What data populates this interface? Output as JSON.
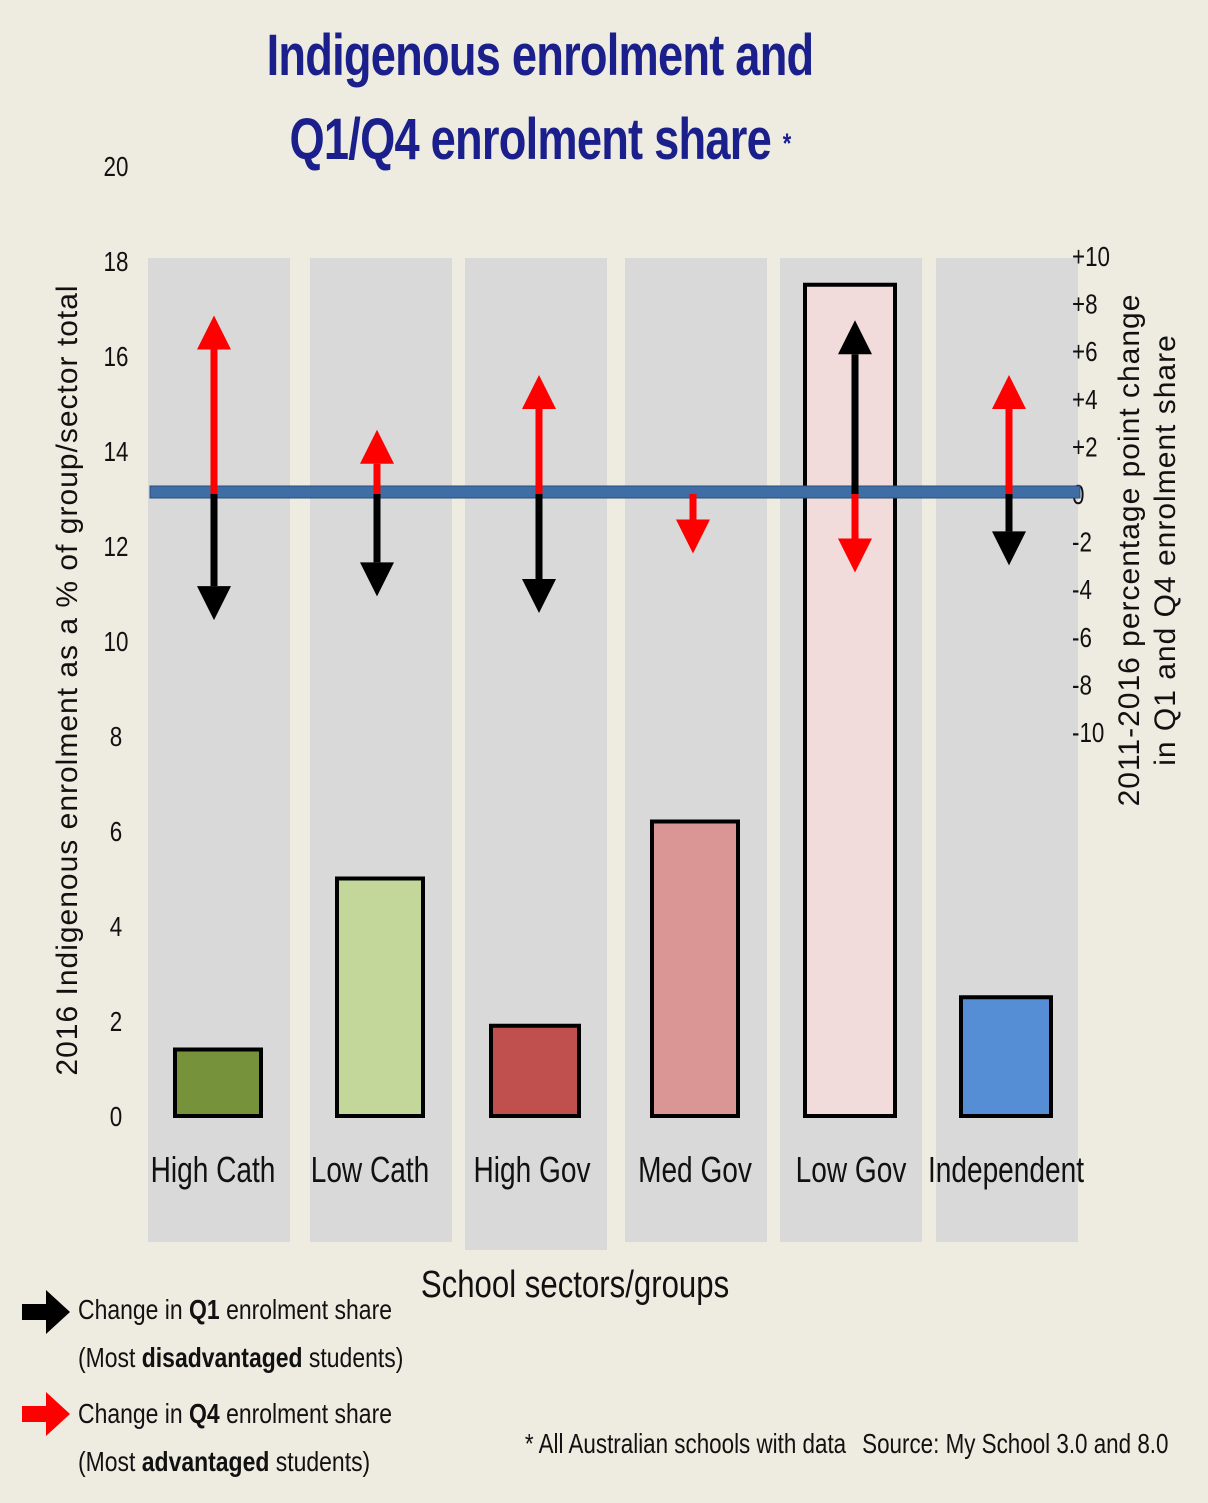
{
  "chart_data": {
    "type": "bar",
    "title_line1": "Indigenous enrolment and",
    "title_line2": "Q1/Q4 enrolment share",
    "title_asterisk": "*",
    "xlabel": "School sectors/groups",
    "ylabel": "2016 Indigenous enrolment as a % of group/sector total",
    "ylabel_right_line1": "2011-2016 percentage point change",
    "ylabel_right_line2": "in Q1 and Q4 enrolment share",
    "ylim": [
      0,
      20
    ],
    "yticks": [
      "0",
      "2",
      "4",
      "6",
      "8",
      "10",
      "12",
      "14",
      "16",
      "18",
      "20"
    ],
    "y2lim": [
      -10,
      10
    ],
    "y2ticks": [
      "-10",
      "-8",
      "-6",
      "-4",
      "-2",
      "0",
      "+2",
      "+4",
      "+6",
      "+8",
      "+10"
    ],
    "categories": [
      "High Cath",
      "Low Cath",
      "High Gov",
      "Med Gov",
      "Low Gov",
      "Independent"
    ],
    "values": [
      1.4,
      5.0,
      1.9,
      6.2,
      17.5,
      2.5
    ],
    "bar_colors": [
      "#76933c",
      "#c4d79b",
      "#c0504d",
      "#da9694",
      "#f2dcdb",
      "#558ed5"
    ],
    "series": [
      {
        "name": "Change in Q1 enrolment share",
        "axis": "right",
        "color": "#000000",
        "values": [
          -5.3,
          -4.3,
          -5.0,
          0,
          7.3,
          -3.0
        ]
      },
      {
        "name": "Change in Q4 enrolment share",
        "axis": "right",
        "color": "#ff0000",
        "values": [
          7.5,
          2.7,
          5.0,
          -2.5,
          -3.3,
          5.0
        ]
      }
    ]
  },
  "legend": {
    "q1_line1_pre": "Change in ",
    "q1_line1_bold": "Q1",
    "q1_line1_post": " enrolment share",
    "q1_line2_pre": "(Most ",
    "q1_line2_bold": "disadvantaged",
    "q1_line2_post": " students)",
    "q4_line1_pre": "Change in ",
    "q4_line1_bold": "Q4",
    "q4_line1_post": " enrolment share",
    "q4_line2_pre": "(Most ",
    "q4_line2_bold": "advantaged",
    "q4_line2_post": " students)"
  },
  "footnote": {
    "note": "*  All Australian schools with data",
    "source": "Source: My School 3.0 and 8.0"
  }
}
